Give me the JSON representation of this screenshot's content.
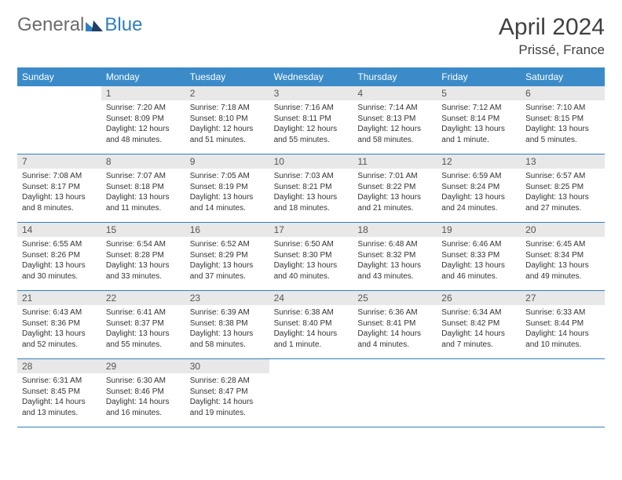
{
  "logo": {
    "text1": "General",
    "text2": "Blue"
  },
  "title": "April 2024",
  "location": "Prissé, France",
  "weekdays": [
    "Sunday",
    "Monday",
    "Tuesday",
    "Wednesday",
    "Thursday",
    "Friday",
    "Saturday"
  ],
  "colors": {
    "header_bg": "#3b8bc9",
    "header_text": "#ffffff",
    "daynum_bg": "#e8e8e8",
    "rule": "#2f7fbf",
    "body_text": "#333333",
    "title_text": "#404040",
    "logo_gray": "#6b6b6b",
    "logo_blue": "#2f7fbf"
  },
  "layout": {
    "columns": 7,
    "first_weekday_index": 1,
    "days_in_month": 30
  },
  "typography": {
    "title_fontsize": 30,
    "location_fontsize": 17,
    "weekday_fontsize": 12,
    "daynum_fontsize": 12,
    "cell_fontsize": 10,
    "logo_fontsize": 24
  },
  "days": [
    {
      "n": 1,
      "sunrise": "7:20 AM",
      "sunset": "8:09 PM",
      "daylight": "12 hours and 48 minutes."
    },
    {
      "n": 2,
      "sunrise": "7:18 AM",
      "sunset": "8:10 PM",
      "daylight": "12 hours and 51 minutes."
    },
    {
      "n": 3,
      "sunrise": "7:16 AM",
      "sunset": "8:11 PM",
      "daylight": "12 hours and 55 minutes."
    },
    {
      "n": 4,
      "sunrise": "7:14 AM",
      "sunset": "8:13 PM",
      "daylight": "12 hours and 58 minutes."
    },
    {
      "n": 5,
      "sunrise": "7:12 AM",
      "sunset": "8:14 PM",
      "daylight": "13 hours and 1 minute."
    },
    {
      "n": 6,
      "sunrise": "7:10 AM",
      "sunset": "8:15 PM",
      "daylight": "13 hours and 5 minutes."
    },
    {
      "n": 7,
      "sunrise": "7:08 AM",
      "sunset": "8:17 PM",
      "daylight": "13 hours and 8 minutes."
    },
    {
      "n": 8,
      "sunrise": "7:07 AM",
      "sunset": "8:18 PM",
      "daylight": "13 hours and 11 minutes."
    },
    {
      "n": 9,
      "sunrise": "7:05 AM",
      "sunset": "8:19 PM",
      "daylight": "13 hours and 14 minutes."
    },
    {
      "n": 10,
      "sunrise": "7:03 AM",
      "sunset": "8:21 PM",
      "daylight": "13 hours and 18 minutes."
    },
    {
      "n": 11,
      "sunrise": "7:01 AM",
      "sunset": "8:22 PM",
      "daylight": "13 hours and 21 minutes."
    },
    {
      "n": 12,
      "sunrise": "6:59 AM",
      "sunset": "8:24 PM",
      "daylight": "13 hours and 24 minutes."
    },
    {
      "n": 13,
      "sunrise": "6:57 AM",
      "sunset": "8:25 PM",
      "daylight": "13 hours and 27 minutes."
    },
    {
      "n": 14,
      "sunrise": "6:55 AM",
      "sunset": "8:26 PM",
      "daylight": "13 hours and 30 minutes."
    },
    {
      "n": 15,
      "sunrise": "6:54 AM",
      "sunset": "8:28 PM",
      "daylight": "13 hours and 33 minutes."
    },
    {
      "n": 16,
      "sunrise": "6:52 AM",
      "sunset": "8:29 PM",
      "daylight": "13 hours and 37 minutes."
    },
    {
      "n": 17,
      "sunrise": "6:50 AM",
      "sunset": "8:30 PM",
      "daylight": "13 hours and 40 minutes."
    },
    {
      "n": 18,
      "sunrise": "6:48 AM",
      "sunset": "8:32 PM",
      "daylight": "13 hours and 43 minutes."
    },
    {
      "n": 19,
      "sunrise": "6:46 AM",
      "sunset": "8:33 PM",
      "daylight": "13 hours and 46 minutes."
    },
    {
      "n": 20,
      "sunrise": "6:45 AM",
      "sunset": "8:34 PM",
      "daylight": "13 hours and 49 minutes."
    },
    {
      "n": 21,
      "sunrise": "6:43 AM",
      "sunset": "8:36 PM",
      "daylight": "13 hours and 52 minutes."
    },
    {
      "n": 22,
      "sunrise": "6:41 AM",
      "sunset": "8:37 PM",
      "daylight": "13 hours and 55 minutes."
    },
    {
      "n": 23,
      "sunrise": "6:39 AM",
      "sunset": "8:38 PM",
      "daylight": "13 hours and 58 minutes."
    },
    {
      "n": 24,
      "sunrise": "6:38 AM",
      "sunset": "8:40 PM",
      "daylight": "14 hours and 1 minute."
    },
    {
      "n": 25,
      "sunrise": "6:36 AM",
      "sunset": "8:41 PM",
      "daylight": "14 hours and 4 minutes."
    },
    {
      "n": 26,
      "sunrise": "6:34 AM",
      "sunset": "8:42 PM",
      "daylight": "14 hours and 7 minutes."
    },
    {
      "n": 27,
      "sunrise": "6:33 AM",
      "sunset": "8:44 PM",
      "daylight": "14 hours and 10 minutes."
    },
    {
      "n": 28,
      "sunrise": "6:31 AM",
      "sunset": "8:45 PM",
      "daylight": "14 hours and 13 minutes."
    },
    {
      "n": 29,
      "sunrise": "6:30 AM",
      "sunset": "8:46 PM",
      "daylight": "14 hours and 16 minutes."
    },
    {
      "n": 30,
      "sunrise": "6:28 AM",
      "sunset": "8:47 PM",
      "daylight": "14 hours and 19 minutes."
    }
  ],
  "labels": {
    "sunrise": "Sunrise:",
    "sunset": "Sunset:",
    "daylight": "Daylight:"
  }
}
